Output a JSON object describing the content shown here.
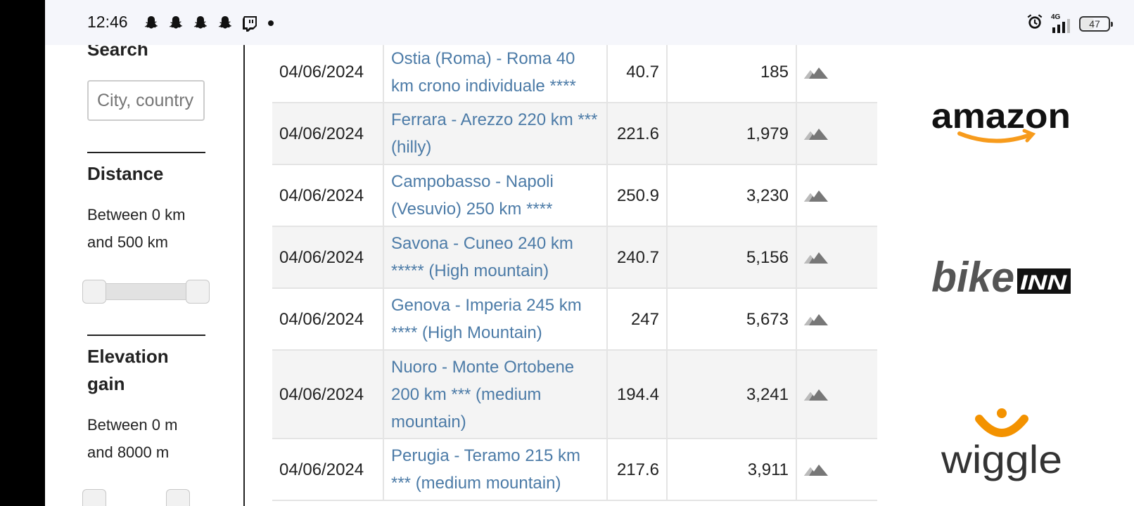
{
  "status_bar": {
    "time": "12:46",
    "notifications": [
      "snapchat-icon",
      "snapchat-icon",
      "snapchat-icon",
      "snapchat-icon",
      "twitch-icon"
    ],
    "network": "4G",
    "battery": 47
  },
  "sidebar": {
    "search_title": "Search",
    "search_placeholder": "City, country",
    "distance_title": "Distance",
    "distance_line1": "Between 0 km",
    "distance_line2": "and 500 km",
    "elevation_title_line1": "Elevation",
    "elevation_title_line2": "gain",
    "elevation_line1": "Between 0 m",
    "elevation_line2": "and 8000 m"
  },
  "rows": [
    {
      "date": "04/06/2024",
      "route": "Ostia (Roma) - Roma 40 km crono individuale ****",
      "distance": "40.7",
      "elevation": "185"
    },
    {
      "date": "04/06/2024",
      "route": "Ferrara - Arezzo 220 km *** (hilly)",
      "distance": "221.6",
      "elevation": "1,979"
    },
    {
      "date": "04/06/2024",
      "route": "Campobasso - Napoli (Vesuvio) 250 km ****",
      "distance": "250.9",
      "elevation": "3,230"
    },
    {
      "date": "04/06/2024",
      "route": "Savona - Cuneo 240 km ***** (High mountain)",
      "distance": "240.7",
      "elevation": "5,156"
    },
    {
      "date": "04/06/2024",
      "route": "Genova - Imperia 245 km **** (High Mountain)",
      "distance": "247",
      "elevation": "5,673"
    },
    {
      "date": "04/06/2024",
      "route": "Nuoro - Monte Ortobene 200 km *** (medium mountain)",
      "distance": "194.4",
      "elevation": "3,241"
    },
    {
      "date": "04/06/2024",
      "route": "Perugia - Teramo 215 km *** (medium mountain)",
      "distance": "217.6",
      "elevation": "3,911"
    }
  ],
  "ads": {
    "amazon": "amazon",
    "bike": "bike",
    "bike_badge": "INN",
    "wiggle": "wiggle",
    "colors": {
      "amazon_arrow": "#f79b1c",
      "wiggle_logo": "#f39200",
      "text_dark": "#222222",
      "link": "#4c7ba7"
    }
  }
}
